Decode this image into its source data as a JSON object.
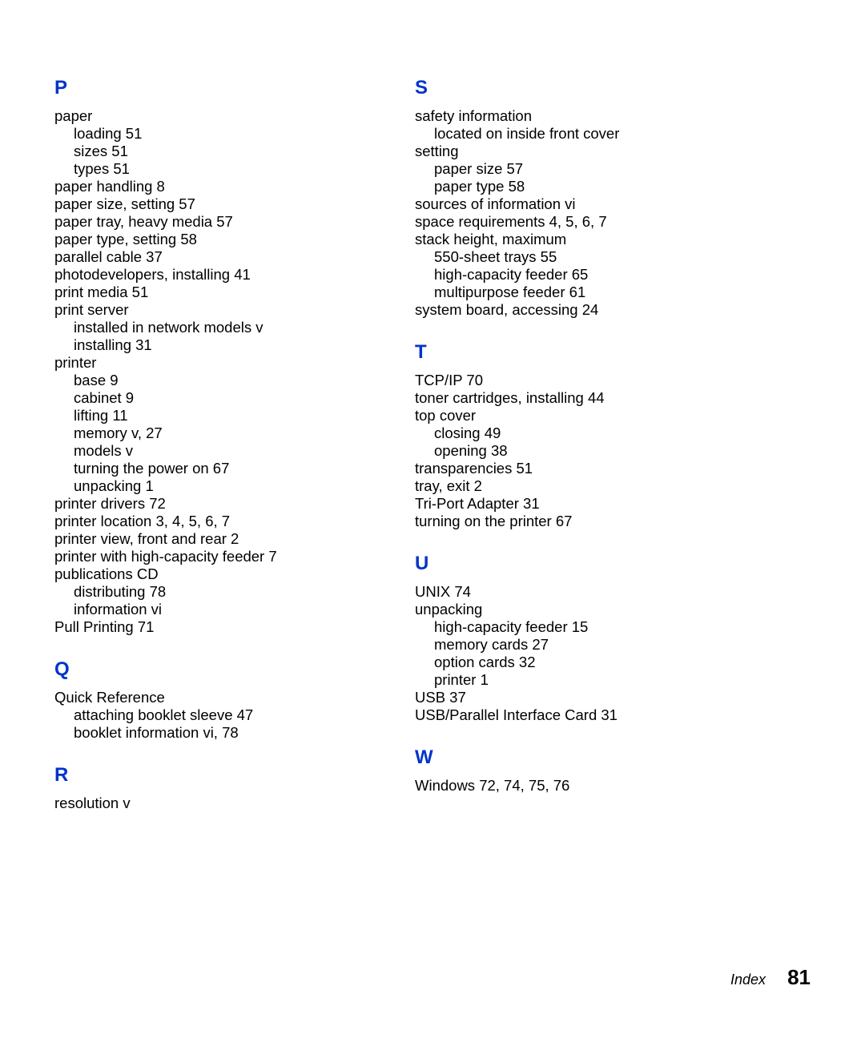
{
  "colors": {
    "heading": "#0033cc",
    "text": "#000000",
    "background": "#ffffff"
  },
  "footer": {
    "label": "Index",
    "page_number": "81"
  },
  "left_column": [
    {
      "type": "letter",
      "text": "P"
    },
    {
      "type": "entry",
      "level": 0,
      "text": "paper"
    },
    {
      "type": "entry",
      "level": 1,
      "text": "loading   51"
    },
    {
      "type": "entry",
      "level": 1,
      "text": "sizes   51"
    },
    {
      "type": "entry",
      "level": 1,
      "text": "types   51"
    },
    {
      "type": "entry",
      "level": 0,
      "text": "paper handling   8"
    },
    {
      "type": "entry",
      "level": 0,
      "text": "paper size, setting   57"
    },
    {
      "type": "entry",
      "level": 0,
      "text": "paper tray, heavy media   57"
    },
    {
      "type": "entry",
      "level": 0,
      "text": "paper type, setting   58"
    },
    {
      "type": "entry",
      "level": 0,
      "text": "parallel cable   37"
    },
    {
      "type": "entry",
      "level": 0,
      "text": "photodevelopers, installing   41"
    },
    {
      "type": "entry",
      "level": 0,
      "text": "print media   51"
    },
    {
      "type": "entry",
      "level": 0,
      "text": "print server"
    },
    {
      "type": "entry",
      "level": 1,
      "text": "installed in network models   v"
    },
    {
      "type": "entry",
      "level": 1,
      "text": "installing   31"
    },
    {
      "type": "entry",
      "level": 0,
      "text": "printer"
    },
    {
      "type": "entry",
      "level": 1,
      "text": "base   9"
    },
    {
      "type": "entry",
      "level": 1,
      "text": "cabinet   9"
    },
    {
      "type": "entry",
      "level": 1,
      "text": "lifting   11"
    },
    {
      "type": "entry",
      "level": 1,
      "text": "memory   v, 27"
    },
    {
      "type": "entry",
      "level": 1,
      "text": "models   v"
    },
    {
      "type": "entry",
      "level": 1,
      "text": "turning the power on   67"
    },
    {
      "type": "entry",
      "level": 1,
      "text": "unpacking   1"
    },
    {
      "type": "entry",
      "level": 0,
      "text": "printer drivers   72"
    },
    {
      "type": "entry",
      "level": 0,
      "text": "printer location   3, 4, 5, 6, 7"
    },
    {
      "type": "entry",
      "level": 0,
      "text": "printer view, front and rear   2"
    },
    {
      "type": "entry",
      "level": 0,
      "text": "printer with high-capacity feeder   7"
    },
    {
      "type": "entry",
      "level": 0,
      "text": "publications CD"
    },
    {
      "type": "entry",
      "level": 1,
      "text": "distributing   78"
    },
    {
      "type": "entry",
      "level": 1,
      "text": "information   vi"
    },
    {
      "type": "entry",
      "level": 0,
      "text": "Pull Printing   71"
    },
    {
      "type": "letter",
      "text": "Q"
    },
    {
      "type": "entry",
      "level": 0,
      "text": "Quick Reference"
    },
    {
      "type": "entry",
      "level": 1,
      "text": "attaching booklet sleeve   47"
    },
    {
      "type": "entry",
      "level": 1,
      "text": "booklet information   vi, 78"
    },
    {
      "type": "letter",
      "text": "R"
    },
    {
      "type": "entry",
      "level": 0,
      "text": "resolution   v"
    }
  ],
  "right_column": [
    {
      "type": "letter",
      "text": "S"
    },
    {
      "type": "entry",
      "level": 0,
      "text": "safety information"
    },
    {
      "type": "entry",
      "level": 1,
      "text": "located on inside front cover"
    },
    {
      "type": "entry",
      "level": 0,
      "text": "setting"
    },
    {
      "type": "entry",
      "level": 1,
      "text": "paper size   57"
    },
    {
      "type": "entry",
      "level": 1,
      "text": "paper type   58"
    },
    {
      "type": "entry",
      "level": 0,
      "text": "sources of information   vi"
    },
    {
      "type": "entry",
      "level": 0,
      "text": "space requirements   4, 5, 6, 7"
    },
    {
      "type": "entry",
      "level": 0,
      "text": "stack height, maximum"
    },
    {
      "type": "entry",
      "level": 1,
      "text": "550-sheet trays   55"
    },
    {
      "type": "entry",
      "level": 1,
      "text": "high-capacity feeder   65"
    },
    {
      "type": "entry",
      "level": 1,
      "text": "multipurpose feeder   61"
    },
    {
      "type": "entry",
      "level": 0,
      "text": "system board, accessing   24"
    },
    {
      "type": "letter",
      "text": "T"
    },
    {
      "type": "entry",
      "level": 0,
      "text": "TCP/IP   70"
    },
    {
      "type": "entry",
      "level": 0,
      "text": "toner cartridges, installing   44"
    },
    {
      "type": "entry",
      "level": 0,
      "text": "top cover"
    },
    {
      "type": "entry",
      "level": 1,
      "text": "closing   49"
    },
    {
      "type": "entry",
      "level": 1,
      "text": "opening   38"
    },
    {
      "type": "entry",
      "level": 0,
      "text": "transparencies   51"
    },
    {
      "type": "entry",
      "level": 0,
      "text": "tray, exit   2"
    },
    {
      "type": "entry",
      "level": 0,
      "text": "Tri-Port Adapter   31"
    },
    {
      "type": "entry",
      "level": 0,
      "text": "turning on the printer   67"
    },
    {
      "type": "letter",
      "text": "U"
    },
    {
      "type": "entry",
      "level": 0,
      "text": "UNIX   74"
    },
    {
      "type": "entry",
      "level": 0,
      "text": "unpacking"
    },
    {
      "type": "entry",
      "level": 1,
      "text": "high-capacity feeder   15"
    },
    {
      "type": "entry",
      "level": 1,
      "text": "memory cards   27"
    },
    {
      "type": "entry",
      "level": 1,
      "text": "option cards   32"
    },
    {
      "type": "entry",
      "level": 1,
      "text": "printer   1"
    },
    {
      "type": "entry",
      "level": 0,
      "text": "USB   37"
    },
    {
      "type": "entry",
      "level": 0,
      "text": "USB/Parallel Interface Card   31"
    },
    {
      "type": "letter",
      "text": "W"
    },
    {
      "type": "entry",
      "level": 0,
      "text": "Windows   72, 74, 75, 76"
    }
  ]
}
